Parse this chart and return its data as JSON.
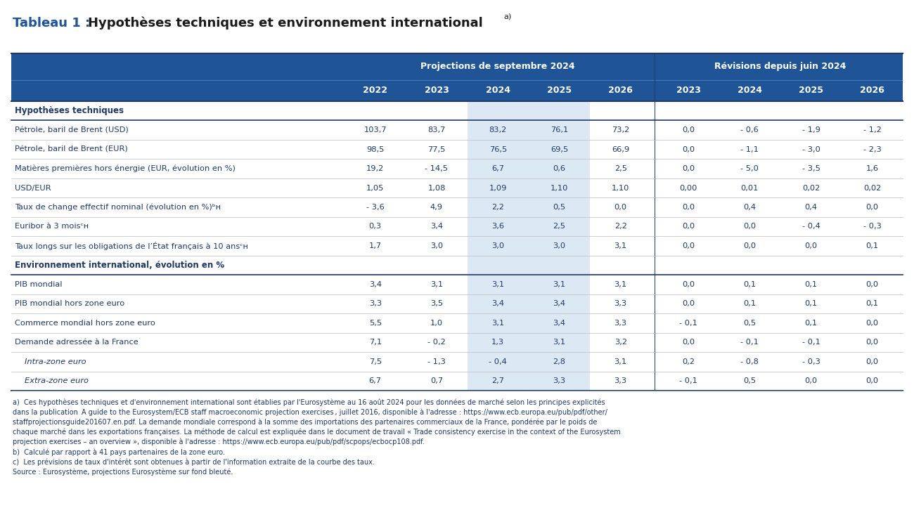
{
  "title_prefix": "Tableau 1 : ",
  "title_main": "Hypothèses techniques et environnement international",
  "title_superscript": "a)",
  "header_bg_color": "#1f5496",
  "header_text_color": "#ffffff",
  "dark_blue": "#1f3864",
  "highlight_col_bg": "#dce9f5",
  "title_blue": "#1f5496",
  "title_black": "#1a1a1a",
  "col_groups": [
    {
      "label": "Projections de septembre 2024"
    },
    {
      "label": "Révisions depuis juin 2024"
    }
  ],
  "columns": [
    "2022",
    "2023",
    "2024",
    "2025",
    "2026",
    "2023",
    "2024",
    "2025",
    "2026"
  ],
  "rows": [
    {
      "label": "Hypothèses techniques",
      "type": "section_header",
      "values": []
    },
    {
      "label": "Pétrole, baril de Brent (USD)",
      "type": "data",
      "values": [
        "103,7",
        "83,7",
        "83,2",
        "76,1",
        "73,2",
        "0,0",
        "- 0,6",
        "- 1,9",
        "- 1,2"
      ]
    },
    {
      "label": "Pétrole, baril de Brent (EUR)",
      "type": "data",
      "values": [
        "98,5",
        "77,5",
        "76,5",
        "69,5",
        "66,9",
        "0,0",
        "- 1,1",
        "- 3,0",
        "- 2,3"
      ]
    },
    {
      "label": "Matières premières hors énergie (EUR, évolution en %)",
      "type": "data",
      "values": [
        "19,2",
        "- 14,5",
        "6,7",
        "0,6",
        "2,5",
        "0,0",
        "- 5,0",
        "- 3,5",
        "1,6"
      ]
    },
    {
      "label": "USD/EUR",
      "type": "data",
      "values": [
        "1,05",
        "1,08",
        "1,09",
        "1,10",
        "1,10",
        "0,00",
        "0,01",
        "0,02",
        "0,02"
      ]
    },
    {
      "label": "Taux de change effectif nominal (évolution en %)ᵇʜ",
      "type": "data",
      "values": [
        "- 3,6",
        "4,9",
        "2,2",
        "0,5",
        "0,0",
        "0,0",
        "0,4",
        "0,4",
        "0,0"
      ]
    },
    {
      "label": "Euribor à 3 moisᶜʜ",
      "type": "data",
      "values": [
        "0,3",
        "3,4",
        "3,6",
        "2,5",
        "2,2",
        "0,0",
        "0,0",
        "- 0,4",
        "- 0,3"
      ]
    },
    {
      "label": "Taux longs sur les obligations de l’État français à 10 ansᶜʜ",
      "type": "data",
      "values": [
        "1,7",
        "3,0",
        "3,0",
        "3,0",
        "3,1",
        "0,0",
        "0,0",
        "0,0",
        "0,1"
      ]
    },
    {
      "label": "Environnement international, évolution en %",
      "type": "section_header",
      "values": []
    },
    {
      "label": "PIB mondial",
      "type": "data",
      "values": [
        "3,4",
        "3,1",
        "3,1",
        "3,1",
        "3,1",
        "0,0",
        "0,1",
        "0,1",
        "0,0"
      ]
    },
    {
      "label": "PIB mondial hors zone euro",
      "type": "data",
      "values": [
        "3,3",
        "3,5",
        "3,4",
        "3,4",
        "3,3",
        "0,0",
        "0,1",
        "0,1",
        "0,1"
      ]
    },
    {
      "label": "Commerce mondial hors zone euro",
      "type": "data",
      "values": [
        "5,5",
        "1,0",
        "3,1",
        "3,4",
        "3,3",
        "- 0,1",
        "0,5",
        "0,1",
        "0,0"
      ]
    },
    {
      "label": "Demande adressée à la France",
      "type": "data",
      "values": [
        "7,1",
        "- 0,2",
        "1,3",
        "3,1",
        "3,2",
        "0,0",
        "- 0,1",
        "- 0,1",
        "0,0"
      ]
    },
    {
      "label": "   Intra-zone euro",
      "type": "data_italic",
      "values": [
        "7,5",
        "- 1,3",
        "- 0,4",
        "2,8",
        "3,1",
        "0,2",
        "- 0,8",
        "- 0,3",
        "0,0"
      ]
    },
    {
      "label": "   Extra-zone euro",
      "type": "data_italic",
      "values": [
        "6,7",
        "0,7",
        "2,7",
        "3,3",
        "3,3",
        "- 0,1",
        "0,5",
        "0,0",
        "0,0"
      ]
    }
  ],
  "footnote_lines": [
    {
      "text": "a)  Ces hypothèses techniques et d’environnement international sont établies par l’Eurosystème au 16 août 2024 pour les données de marché selon les principes expliqués",
      "italic": false
    },
    {
      "text": "dans la publication ",
      "italic": false,
      "continuation": true,
      "parts": [
        {
          "text": "A guide to the Eurosystem/ECB staff macroeconomic projection exercises",
          "italic": true
        },
        {
          "text": ", juillet 2016, disponible à l’adresse : ",
          "italic": false
        },
        {
          "text": "https://www.ecb.europa.eu/pub/pdf/other/",
          "italic": true
        }
      ]
    },
    {
      "text": "staffprojectionsguide201607.en.pdf",
      "italic": true,
      "continuation": true,
      "parts": [
        {
          "text": "staffprojectionsguide201607.en.pdf",
          "italic": true
        },
        {
          "text": ". La demande mondiale correspond à la somme des importations des partenaires commerciaux de la France, pondérée par le poids de",
          "italic": false
        }
      ]
    },
    {
      "text": "chaque marché dans les exportations françaises. La méthode de calcul est expliquée dans le document de travail « Trade consistency exercise in the context of the Eurosystem",
      "italic": false
    },
    {
      "text": "projection exercises – an overview », disponible à l’adresse : ",
      "italic": false,
      "continuation": true,
      "parts": [
        {
          "text": "projection exercises – an overview », disponible à l’adresse : ",
          "italic": false
        },
        {
          "text": "https://www.ecb.europa.eu/pub/pdf/scpops/ecbocp108.pdf",
          "italic": true
        },
        {
          "text": ".",
          "italic": false
        }
      ]
    },
    {
      "text": "b)  Calculé par rapport à 41 pays partenaires de la zone euro.",
      "italic": false
    },
    {
      "text": "c)  Les prévisions de taux d’intérêt sont obtenues à partir de l’information extraite de la courbe des taux.",
      "italic": false
    },
    {
      "text": "Source : Eurosystème, projections Eurosystème sur fond bleué.",
      "italic": false
    }
  ]
}
